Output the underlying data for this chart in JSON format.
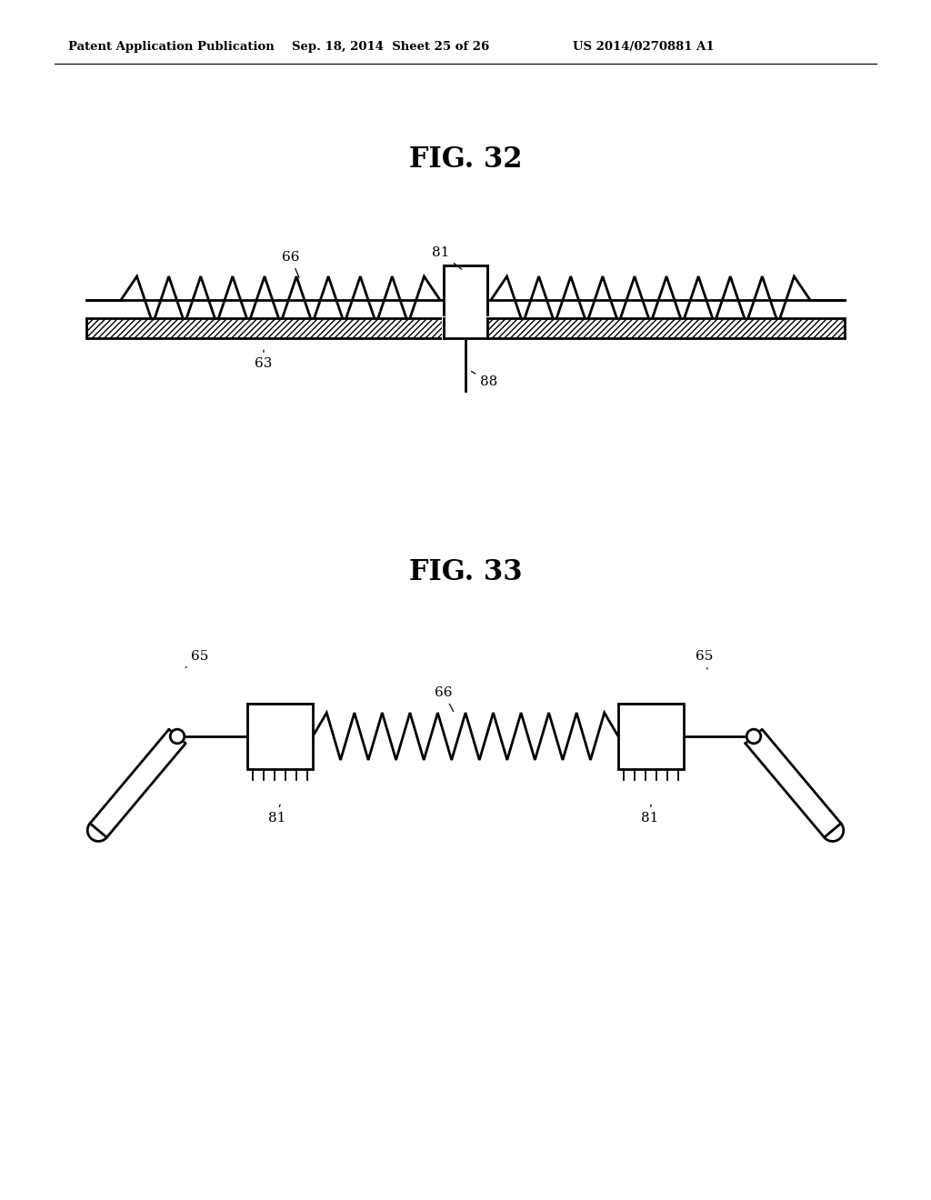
{
  "bg_color": "#ffffff",
  "line_color": "#000000",
  "header_left": "Patent Application Publication",
  "header_mid": "Sep. 18, 2014  Sheet 25 of 26",
  "header_right": "US 2014/0270881 A1",
  "fig32_title": "FIG. 32",
  "fig33_title": "FIG. 33"
}
